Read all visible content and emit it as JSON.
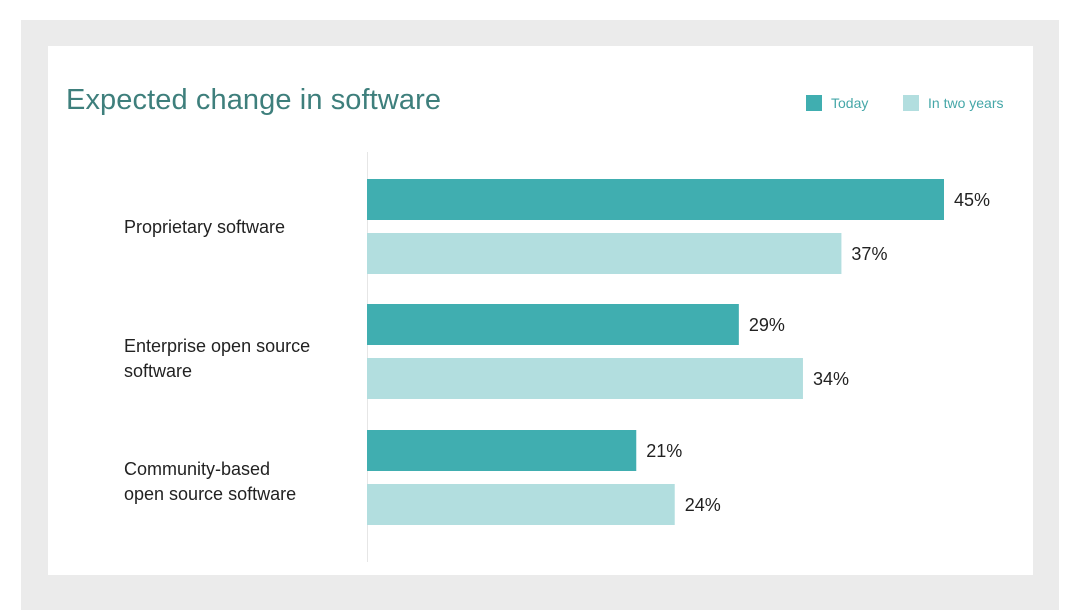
{
  "chart_data": {
    "type": "bar",
    "orientation": "horizontal",
    "title": "Expected change in software",
    "xlabel": "",
    "ylabel": "",
    "xlim": [
      0,
      45
    ],
    "grid": false,
    "legend_position": "top-right",
    "categories": [
      "Proprietary software",
      "Enterprise open source\nsoftware",
      "Community-based\nopen source software"
    ],
    "series": [
      {
        "name": "Today",
        "color": "#40aeb0",
        "values": [
          45,
          29,
          21
        ],
        "labels": [
          "45%",
          "29%",
          "21%"
        ]
      },
      {
        "name": "In two years",
        "color": "#b2dedf",
        "values": [
          37,
          34,
          24
        ],
        "labels": [
          "37%",
          "34%",
          "24%"
        ]
      }
    ]
  },
  "colors": {
    "title": "#3e7f7c",
    "legend_text": "#45a7a8",
    "frame": "#ebebeb",
    "axis": "#e6e6e6"
  }
}
